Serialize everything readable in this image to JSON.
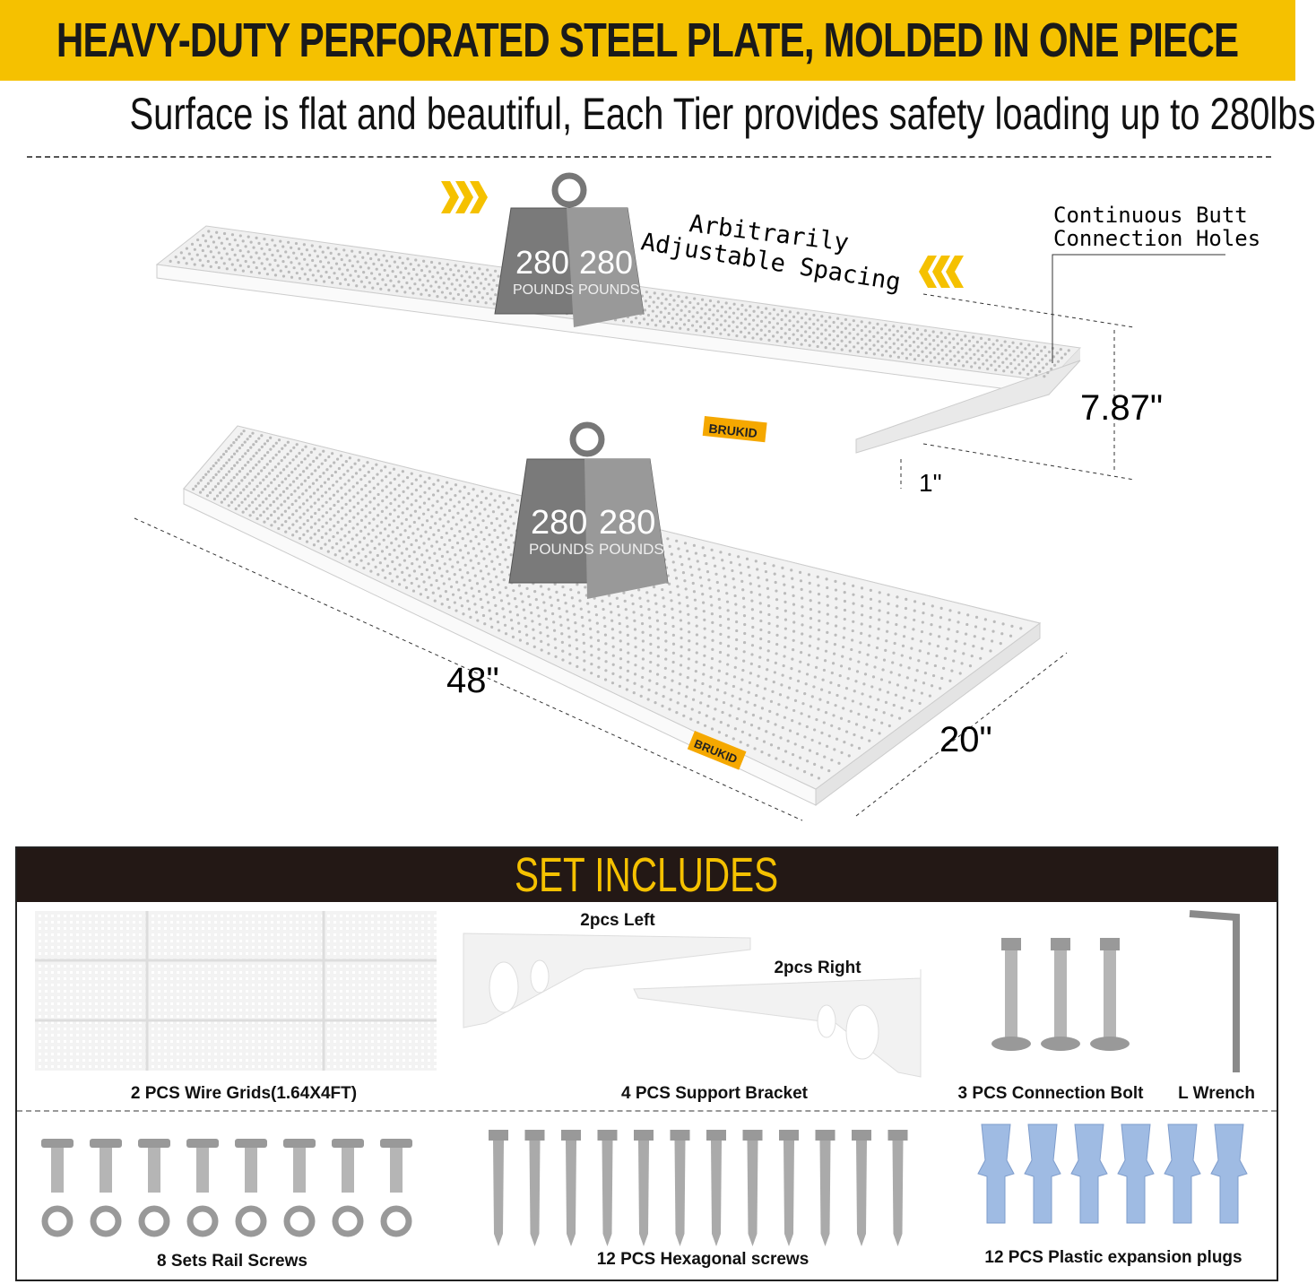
{
  "header": {
    "title": "HEAVY-DUTY PERFORATED STEEL PLATE, MOLDED IN ONE PIECE",
    "subtitle": "Surface is flat and beautiful, Each Tier provides safety loading up to 280lbs"
  },
  "illustration": {
    "spacing_label_1": "Arbitrarily",
    "spacing_label_2": "Adjustable Spacing",
    "holes_label_1": "Continuous Butt",
    "holes_label_2": "Connection Holes",
    "height": "7.87\"",
    "thickness": "1\"",
    "length": "48\"",
    "depth": "20\"",
    "weight_value": "280",
    "weight_unit": "POUNDS",
    "brand": "BRUKID",
    "accent": "#f5c100"
  },
  "set_includes": {
    "title": "SET INCLUDES",
    "bracket_left": "2pcs Left",
    "bracket_right": "2pcs Right",
    "items": [
      {
        "label": "2 PCS Wire Grids(1.64X4FT)"
      },
      {
        "label": "4 PCS Support Bracket"
      },
      {
        "label": "3 PCS Connection Bolt"
      },
      {
        "label": "L Wrench"
      },
      {
        "label": "8 Sets Rail Screws"
      },
      {
        "label": "12 PCS Hexagonal screws"
      },
      {
        "label": "12 PCS Plastic expansion plugs"
      }
    ]
  }
}
